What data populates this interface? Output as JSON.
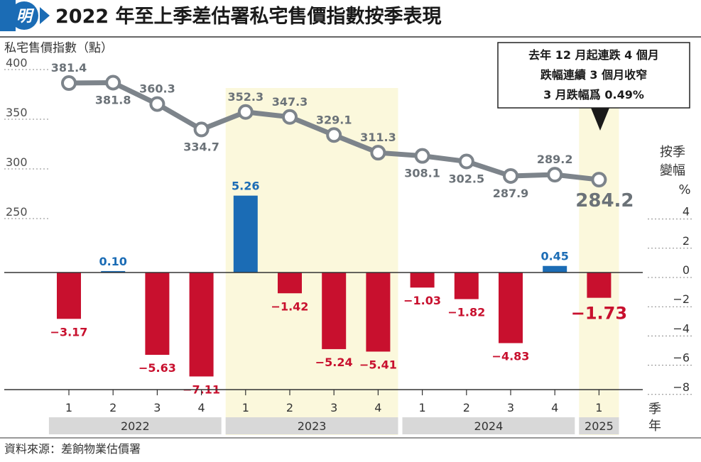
{
  "header": {
    "logo_glyph": "明",
    "title": "2022 年至上季差估署私宅售價指數按季表現"
  },
  "source": "資料來源：差餉物業估價署",
  "annotation": [
    "去年 12 月起連跌 4 個月",
    "跌幅連續 3 個月收窄",
    "3 月跌幅爲 0.49%"
  ],
  "colors": {
    "line": "#7d848b",
    "positive_bar": "#1b6cb5",
    "negative_bar": "#c8102e",
    "highlight_band": "#fbf8dc",
    "year_band": "#d8d8d8"
  },
  "chart_data": {
    "type": "line+bar",
    "categories": [
      "1",
      "2",
      "3",
      "4",
      "1",
      "2",
      "3",
      "4",
      "1",
      "2",
      "3",
      "4",
      "1"
    ],
    "years": [
      {
        "label": "2022",
        "quarters": 4
      },
      {
        "label": "2023",
        "quarters": 4
      },
      {
        "label": "2024",
        "quarters": 4
      },
      {
        "label": "2025",
        "quarters": 1
      }
    ],
    "highlighted_years": [
      "2023",
      "2025"
    ],
    "index_series": {
      "values": [
        381.4,
        381.8,
        360.3,
        334.7,
        352.3,
        347.3,
        329.1,
        311.3,
        308.1,
        302.5,
        287.9,
        289.2,
        284.2
      ],
      "labels": [
        "381.4",
        "381.8",
        "360.3",
        "334.7",
        "352.3",
        "347.3",
        "329.1",
        "311.3",
        "308.1",
        "302.5",
        "287.9",
        "289.2",
        "284.2"
      ]
    },
    "change_series": {
      "values": [
        -3.17,
        0.1,
        -5.63,
        -7.11,
        5.26,
        -1.42,
        -5.24,
        -5.41,
        -1.03,
        -1.82,
        -4.83,
        0.45,
        -1.73
      ],
      "labels": [
        "−3.17",
        "0.10",
        "−5.63",
        "−7.11",
        "5.26",
        "−1.42",
        "−5.24",
        "−5.41",
        "−1.03",
        "−1.82",
        "−4.83",
        "0.45",
        "−1.73"
      ]
    },
    "left_axis": {
      "label": "私宅售價指數（點）",
      "ticks": [
        "400",
        "350",
        "300",
        "250"
      ],
      "tick_values": [
        400,
        350,
        300,
        250
      ]
    },
    "right_axis": {
      "label": [
        "按季",
        "變幅",
        "%"
      ],
      "ticks": [
        "4",
        "2",
        "0",
        "−2",
        "−4",
        "−6",
        "−8"
      ],
      "tick_values": [
        4,
        2,
        0,
        -2,
        -4,
        -6,
        -8
      ]
    },
    "x_axis_words": [
      "季",
      "年"
    ]
  }
}
